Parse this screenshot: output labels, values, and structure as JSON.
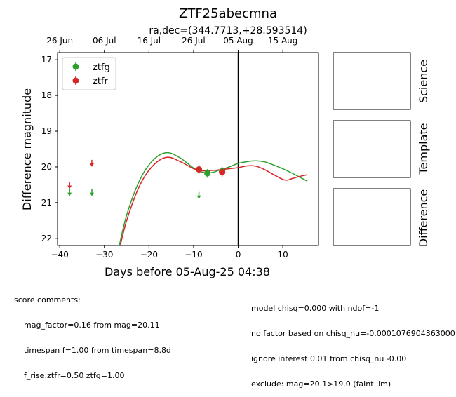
{
  "chart_data": {
    "type": "scatter",
    "title": "ZTF25abecmna",
    "subtitle": "ra,dec=(344.7713,+28.593514)",
    "xlabel": "Days before 05-Aug-25 04:38",
    "ylabel": "Difference magnitude",
    "xlim": [
      -40.5,
      18
    ],
    "ylim": [
      22.2,
      16.8
    ],
    "y_inverted": true,
    "x_ticks": [
      -40,
      -30,
      -20,
      -10,
      0,
      10
    ],
    "y_ticks": [
      17,
      18,
      19,
      20,
      21,
      22
    ],
    "top_ticks": [
      {
        "label": "26 Jun",
        "x": -40
      },
      {
        "label": "06 Jul",
        "x": -30
      },
      {
        "label": "16 Jul",
        "x": -20
      },
      {
        "label": "26 Jul",
        "x": -10
      },
      {
        "label": "05 Aug",
        "x": 0
      },
      {
        "label": "15 Aug",
        "x": 10
      }
    ],
    "reference_line_x": 0,
    "legend_position": "top-left",
    "series": [
      {
        "name": "ztfg",
        "color": "#2ca02c",
        "detections": [
          {
            "x": -6.9,
            "y": 20.18,
            "err": 0.12
          },
          {
            "x": -3.6,
            "y": 20.12,
            "err": 0.12
          }
        ],
        "upper_limits": [
          {
            "x": -37.8,
            "y": 20.72
          },
          {
            "x": -32.8,
            "y": 20.72
          },
          {
            "x": -8.8,
            "y": 20.8
          }
        ],
        "model": [
          {
            "x": -27,
            "y": 22.4
          },
          {
            "x": -25,
            "y": 21.35
          },
          {
            "x": -22,
            "y": 20.35
          },
          {
            "x": -19,
            "y": 19.8
          },
          {
            "x": -16,
            "y": 19.6
          },
          {
            "x": -13,
            "y": 19.75
          },
          {
            "x": -10,
            "y": 20.03
          },
          {
            "x": -8,
            "y": 20.15
          },
          {
            "x": -6,
            "y": 20.16
          },
          {
            "x": -4,
            "y": 20.08
          },
          {
            "x": -2,
            "y": 20.0
          },
          {
            "x": 0,
            "y": 19.9
          },
          {
            "x": 2,
            "y": 19.85
          },
          {
            "x": 4,
            "y": 19.83
          },
          {
            "x": 6,
            "y": 19.86
          },
          {
            "x": 8,
            "y": 19.95
          },
          {
            "x": 10,
            "y": 20.05
          },
          {
            "x": 12,
            "y": 20.17
          },
          {
            "x": 14,
            "y": 20.3
          },
          {
            "x": 15.5,
            "y": 20.4
          }
        ]
      },
      {
        "name": "ztfr",
        "color": "#d62728",
        "detections": [
          {
            "x": -8.8,
            "y": 20.07,
            "err": 0.12
          },
          {
            "x": -3.6,
            "y": 20.15,
            "err": 0.12
          }
        ],
        "upper_limits": [
          {
            "x": -37.8,
            "y": 20.52
          },
          {
            "x": -32.8,
            "y": 19.9
          }
        ],
        "model": [
          {
            "x": -26.8,
            "y": 22.4
          },
          {
            "x": -25,
            "y": 21.5
          },
          {
            "x": -22,
            "y": 20.5
          },
          {
            "x": -19,
            "y": 19.95
          },
          {
            "x": -16,
            "y": 19.73
          },
          {
            "x": -13,
            "y": 19.85
          },
          {
            "x": -10,
            "y": 20.05
          },
          {
            "x": -8,
            "y": 20.11
          },
          {
            "x": -6,
            "y": 20.1
          },
          {
            "x": -4,
            "y": 20.08
          },
          {
            "x": -2,
            "y": 20.05
          },
          {
            "x": 0,
            "y": 20.02
          },
          {
            "x": 2,
            "y": 19.97
          },
          {
            "x": 4,
            "y": 19.98
          },
          {
            "x": 6,
            "y": 20.08
          },
          {
            "x": 8,
            "y": 20.22
          },
          {
            "x": 10,
            "y": 20.35
          },
          {
            "x": 11,
            "y": 20.37
          },
          {
            "x": 12,
            "y": 20.33
          },
          {
            "x": 14,
            "y": 20.26
          },
          {
            "x": 15.5,
            "y": 20.22
          }
        ]
      }
    ]
  },
  "panels": [
    "Science",
    "Template",
    "Difference"
  ],
  "comments_left": {
    "heading": "score comments:",
    "lines": [
      "mag_factor=0.16 from mag=20.11",
      "timespan f=1.00 from timespan=8.8d",
      "f_rise:ztfr=0.50 ztfg=1.00"
    ]
  },
  "comments_right": {
    "lines": [
      "model chisq=0.000 with ndof=-1",
      "no factor based on chisq_nu=-0.0001076904363000",
      "ignore interest 0.01 from chisq_nu -0.00",
      "exclude: mag=20.1>19.0 (faint lim)"
    ]
  }
}
